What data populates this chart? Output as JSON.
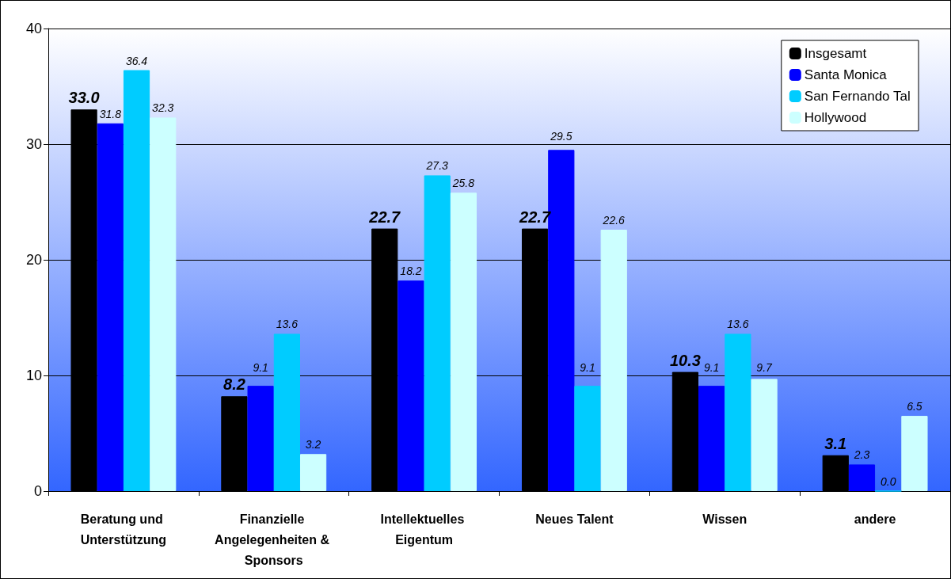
{
  "chart_data": {
    "type": "bar",
    "categories": [
      "Beratung und Unterstützung",
      "Finanzielle Angelegenheiten & Sponsors",
      "Intellektuelles Eigentum",
      "Neues Talent",
      "Wissen",
      "andere"
    ],
    "series": [
      {
        "name": "Insgesamt",
        "color": "#000000",
        "values": [
          33.0,
          8.2,
          22.7,
          22.7,
          10.3,
          3.1
        ],
        "value_labels": [
          "33.0",
          "8.2",
          "22.7",
          "22.7",
          "10.3",
          "3.1"
        ]
      },
      {
        "name": "Santa Monica",
        "color": "#0000ff",
        "values": [
          31.8,
          9.1,
          18.2,
          29.5,
          9.1,
          2.3
        ],
        "value_labels": [
          "31.8",
          "9.1",
          "18.2",
          "29.5",
          "9.1",
          "2.3"
        ]
      },
      {
        "name": "San Fernando Tal",
        "color": "#00ccff",
        "values": [
          36.4,
          13.6,
          27.3,
          9.1,
          13.6,
          0.0
        ],
        "value_labels": [
          "36.4",
          "13.6",
          "27.3",
          "9.1",
          "13.6",
          "0.0"
        ]
      },
      {
        "name": "Hollywood",
        "color": "#ccffff",
        "values": [
          32.3,
          3.2,
          25.8,
          22.6,
          9.7,
          6.5
        ],
        "value_labels": [
          "32.3",
          "3.2",
          "25.8",
          "22.6",
          "9.7",
          "6.5"
        ]
      }
    ],
    "ylim": [
      0,
      40
    ],
    "yticks": [
      0,
      10,
      20,
      30,
      40
    ],
    "grid": "y",
    "legend": "top right"
  }
}
